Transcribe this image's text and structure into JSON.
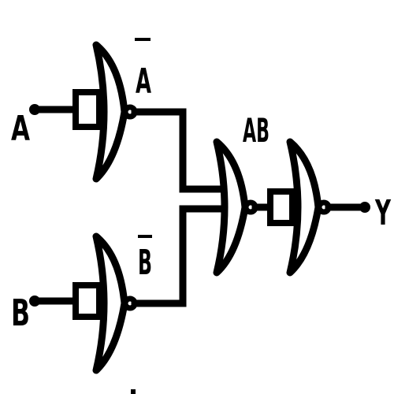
{
  "labels": {
    "input_a": "A",
    "input_b": "B",
    "not_a": "A",
    "not_b": "B",
    "ab": "AB",
    "output_y": "Y"
  },
  "gates": [
    {
      "type": "NOR",
      "role": "inverter",
      "inputs": [
        "A"
      ],
      "output": "Ā"
    },
    {
      "type": "NOR",
      "role": "inverter",
      "inputs": [
        "B"
      ],
      "output": "B̄"
    },
    {
      "type": "NOR",
      "inputs": [
        "Ā",
        "B̄"
      ],
      "output": "AB"
    },
    {
      "type": "NOR",
      "role": "inverter",
      "inputs": [
        "AB"
      ],
      "output": "Y"
    }
  ]
}
